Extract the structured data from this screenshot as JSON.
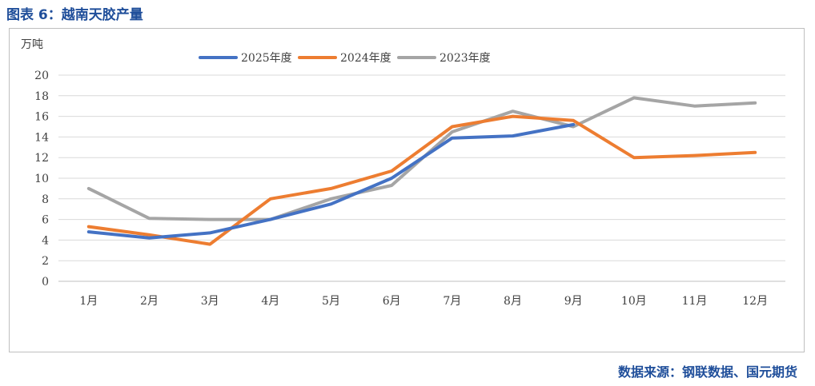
{
  "figure_title": "图表 6：越南天胶产量",
  "source_note": "数据来源：钢联数据、国元期货",
  "colors": {
    "accent": "#1f4e9a",
    "grid": "#d9d9d9",
    "axis": "#bfbfbf"
  },
  "chart_data": {
    "type": "line",
    "title": "",
    "unit_label": "万吨",
    "xlabel": "",
    "ylabel": "",
    "categories": [
      "1月",
      "2月",
      "3月",
      "4月",
      "5月",
      "6月",
      "7月",
      "8月",
      "9月",
      "10月",
      "11月",
      "12月"
    ],
    "ylim": [
      0,
      20
    ],
    "yticks": [
      0,
      2,
      4,
      6,
      8,
      10,
      12,
      14,
      16,
      18,
      20
    ],
    "grid": true,
    "legend_position": "top-center",
    "series": [
      {
        "name": "2025年度",
        "color": "#4472c4",
        "values": [
          4.8,
          4.2,
          4.7,
          6.0,
          7.5,
          10.0,
          13.9,
          14.1,
          15.2,
          null,
          null,
          null
        ]
      },
      {
        "name": "2024年度",
        "color": "#ed7d31",
        "values": [
          5.3,
          4.5,
          3.6,
          8.0,
          9.0,
          10.7,
          15.0,
          16.0,
          15.6,
          12.0,
          12.2,
          12.5
        ]
      },
      {
        "name": "2023年度",
        "color": "#a5a5a5",
        "values": [
          9.0,
          6.1,
          6.0,
          6.0,
          8.0,
          9.3,
          14.5,
          16.5,
          15.0,
          17.8,
          17.0,
          17.3
        ]
      }
    ]
  }
}
